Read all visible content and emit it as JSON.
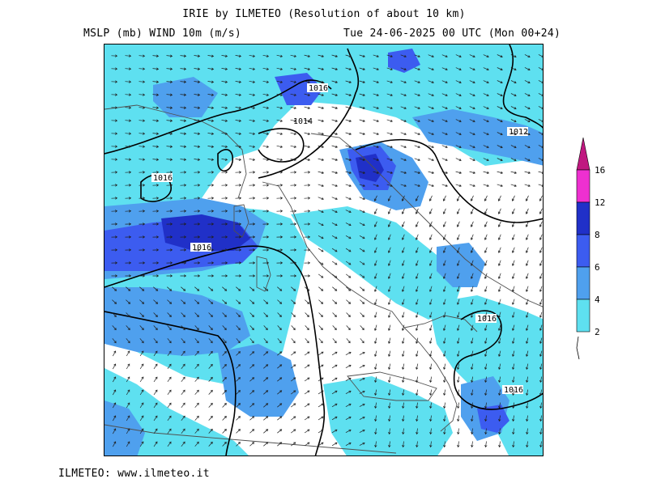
{
  "header": {
    "title": "IRIE by ILMETEO (Resolution of about 10 km)",
    "fields": "MSLP (mb)  WIND 10m (m/s)",
    "valid_time": "Tue 24-06-2025 00 UTC (Mon 00+24)"
  },
  "footer": {
    "credit": "ILMETEO: www.ilmeteo.it"
  },
  "legend": {
    "levels": [
      "2",
      "4",
      "6",
      "8",
      "12",
      "16"
    ],
    "colors": [
      "#5ee0f0",
      "#4fa0ee",
      "#3c5cf0",
      "#2030c8",
      "#ee30d0",
      "#c01880"
    ]
  },
  "map": {
    "colors": {
      "shade_2": "#5ee0f0",
      "shade_4": "#4fa0ee",
      "shade_6": "#3c5cf0",
      "shade_8": "#2030c8",
      "isobar": "#000000",
      "coast": "#505050",
      "arrow": "#202020"
    },
    "isobar_labels": [
      "1016",
      "1014",
      "1012",
      "1016",
      "1016",
      "1016",
      "1016"
    ]
  }
}
